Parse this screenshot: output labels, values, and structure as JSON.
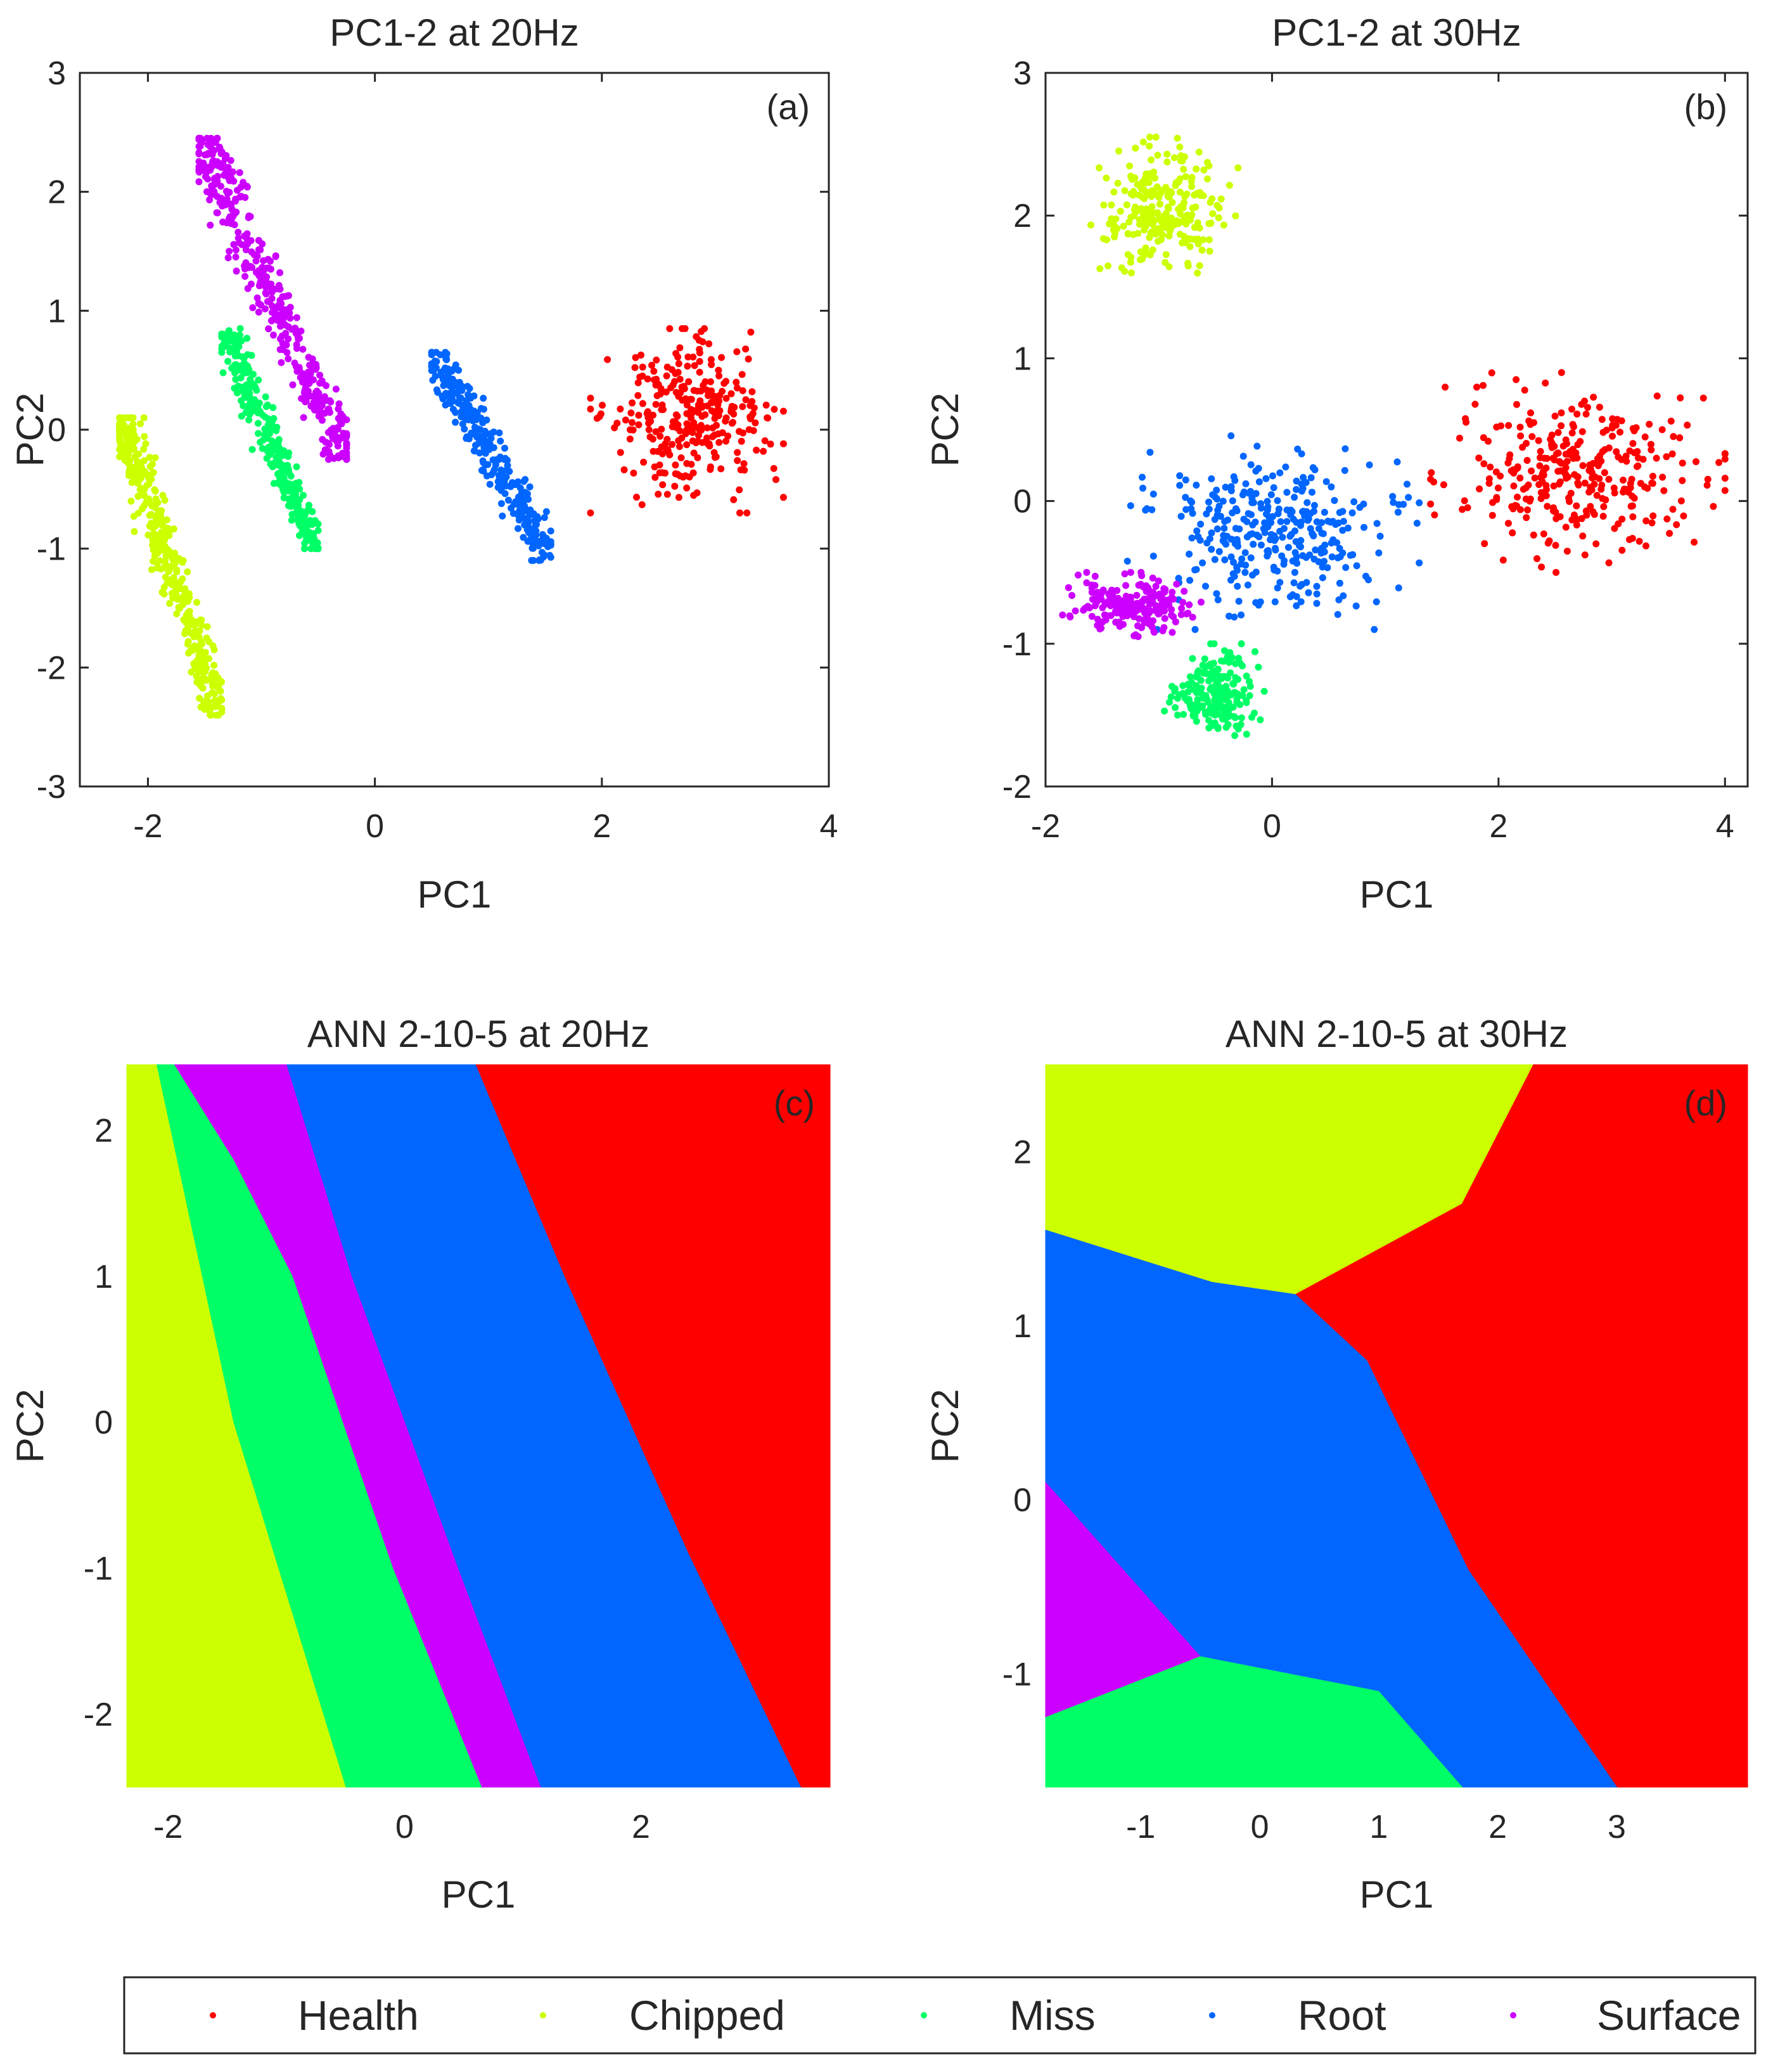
{
  "legend": {
    "entries": [
      {
        "label": "Health",
        "color": "#ff0000"
      },
      {
        "label": "Chipped",
        "color": "#ccff00"
      },
      {
        "label": "Miss",
        "color": "#00ff66"
      },
      {
        "label": "Root",
        "color": "#0066ff"
      },
      {
        "label": "Surface",
        "color": "#cc00ff"
      }
    ]
  },
  "chart_data": [
    {
      "type": "scatter",
      "panel": "(a)",
      "title": "PC1-2 at 20Hz",
      "xlabel": "PC1",
      "ylabel": "PC2",
      "xlim": [
        -2.6,
        4
      ],
      "ylim": [
        -3,
        3
      ],
      "xticks": [
        -2,
        0,
        2,
        4
      ],
      "yticks": [
        -3,
        -2,
        -1,
        0,
        1,
        2,
        3
      ],
      "tick_labels_x": [
        "-2",
        "0",
        "2",
        "4"
      ],
      "tick_labels_y": [
        "-3",
        "-2",
        "-1",
        "0",
        "1",
        "2",
        "3"
      ],
      "series": [
        {
          "name": "Health",
          "color": "#ff0000",
          "x_range": [
            1.9,
            3.6
          ],
          "y_range": [
            -0.7,
            0.85
          ],
          "n": 300,
          "shape": "blob"
        },
        {
          "name": "Chipped",
          "color": "#ccff00",
          "x_range": [
            -2.25,
            -1.35
          ],
          "y_range": [
            -2.4,
            0.1
          ],
          "n": 400,
          "shape": "line"
        },
        {
          "name": "Miss",
          "color": "#00ff66",
          "x_range": [
            -1.35,
            -0.5
          ],
          "y_range": [
            -1.0,
            0.85
          ],
          "n": 300,
          "shape": "line"
        },
        {
          "name": "Root",
          "color": "#0066ff",
          "x_range": [
            0.5,
            1.55
          ],
          "y_range": [
            -1.1,
            0.65
          ],
          "n": 300,
          "shape": "line"
        },
        {
          "name": "Surface",
          "color": "#cc00ff",
          "x_range": [
            -1.55,
            -0.25
          ],
          "y_range": [
            -0.25,
            2.45
          ],
          "n": 400,
          "shape": "line"
        }
      ]
    },
    {
      "type": "scatter",
      "panel": "(b)",
      "title": "PC1-2 at 30Hz",
      "xlabel": "PC1",
      "ylabel": "PC2",
      "xlim": [
        -2,
        4.2
      ],
      "ylim": [
        -2,
        3
      ],
      "xticks": [
        -2,
        0,
        2,
        4
      ],
      "yticks": [
        -2,
        -1,
        0,
        1,
        2,
        3
      ],
      "tick_labels_x": [
        "-2",
        "0",
        "2",
        "4"
      ],
      "tick_labels_y": [
        "-2",
        "-1",
        "0",
        "1",
        "2",
        "3"
      ],
      "series": [
        {
          "name": "Health",
          "color": "#ff0000",
          "x_range": [
            1.4,
            4.0
          ],
          "y_range": [
            -0.5,
            0.9
          ],
          "n": 320,
          "shape": "blob"
        },
        {
          "name": "Chipped",
          "color": "#ccff00",
          "x_range": [
            -1.6,
            -0.3
          ],
          "y_range": [
            1.55,
            2.55
          ],
          "n": 250,
          "shape": "blob"
        },
        {
          "name": "Miss",
          "color": "#00ff66",
          "x_range": [
            -0.95,
            -0.05
          ],
          "y_range": [
            -1.7,
            -1.0
          ],
          "n": 200,
          "shape": "blob"
        },
        {
          "name": "Root",
          "color": "#0066ff",
          "x_range": [
            -1.35,
            1.3
          ],
          "y_range": [
            -0.9,
            0.5
          ],
          "n": 330,
          "shape": "blob"
        },
        {
          "name": "Surface",
          "color": "#cc00ff",
          "x_range": [
            -1.85,
            -0.6
          ],
          "y_range": [
            -0.95,
            -0.5
          ],
          "n": 200,
          "shape": "blob"
        }
      ]
    },
    {
      "type": "heatmap",
      "panel": "(c)",
      "title": "ANN 2-10-5 at 20Hz",
      "xlabel": "PC1",
      "ylabel": "PC2",
      "xlim": [
        -2.35,
        3.6
      ],
      "ylim": [
        -2.5,
        2.45
      ],
      "xticks": [
        -2,
        0,
        2
      ],
      "yticks": [
        -2,
        -1,
        0,
        1,
        2
      ],
      "tick_labels_x": [
        "-2",
        "0",
        "2"
      ],
      "tick_labels_y": [
        "-2",
        "-1",
        "0",
        "1",
        "2"
      ],
      "regions": [
        {
          "name": "Health",
          "color": "#ff0000",
          "polygon": [
            [
              0.6,
              2.45
            ],
            [
              3.6,
              2.45
            ],
            [
              3.6,
              -2.5
            ],
            [
              3.35,
              -2.5
            ],
            [
              2.4,
              -0.9
            ],
            [
              1.35,
              1.0
            ]
          ]
        },
        {
          "name": "Root",
          "color": "#0066ff",
          "polygon": [
            [
              -1.0,
              2.45
            ],
            [
              0.6,
              2.45
            ],
            [
              1.35,
              1.0
            ],
            [
              2.4,
              -0.9
            ],
            [
              3.35,
              -2.5
            ],
            [
              1.15,
              -2.5
            ],
            [
              0.45,
              -1.0
            ],
            [
              -0.45,
              1.0
            ]
          ]
        },
        {
          "name": "Surface",
          "color": "#cc00ff",
          "polygon": [
            [
              -1.95,
              2.45
            ],
            [
              -1.0,
              2.45
            ],
            [
              -0.45,
              1.0
            ],
            [
              0.45,
              -1.0
            ],
            [
              1.15,
              -2.5
            ],
            [
              0.65,
              -2.5
            ],
            [
              -0.1,
              -1.0
            ],
            [
              -0.95,
              1.0
            ],
            [
              -1.45,
              1.8
            ]
          ]
        },
        {
          "name": "Miss",
          "color": "#00ff66",
          "polygon": [
            [
              -2.1,
              2.45
            ],
            [
              -1.95,
              2.45
            ],
            [
              -1.45,
              1.8
            ],
            [
              -0.95,
              1.0
            ],
            [
              -0.1,
              -1.0
            ],
            [
              0.65,
              -2.5
            ],
            [
              -0.5,
              -2.5
            ],
            [
              -1.45,
              0.0
            ]
          ]
        },
        {
          "name": "Chipped",
          "color": "#ccff00",
          "polygon": [
            [
              -2.35,
              2.45
            ],
            [
              -2.1,
              2.45
            ],
            [
              -1.45,
              0.0
            ],
            [
              -0.5,
              -2.5
            ],
            [
              -2.35,
              -2.5
            ]
          ]
        }
      ]
    },
    {
      "type": "heatmap",
      "panel": "(d)",
      "title": "ANN 2-10-5 at 30Hz",
      "xlabel": "PC1",
      "ylabel": "PC2",
      "xlim": [
        -1.8,
        4.1
      ],
      "ylim": [
        -1.65,
        2.5
      ],
      "xticks": [
        -1,
        0,
        1,
        2,
        3
      ],
      "yticks": [
        -1,
        0,
        1,
        2
      ],
      "tick_labels_x": [
        "-1",
        "0",
        "1",
        "2",
        "3"
      ],
      "tick_labels_y": [
        "-1",
        "0",
        "1",
        "2"
      ],
      "regions": [
        {
          "name": "Chipped",
          "color": "#ccff00",
          "polygon": [
            [
              -1.8,
              2.5
            ],
            [
              2.3,
              2.5
            ],
            [
              1.7,
              1.7
            ],
            [
              0.3,
              1.18
            ],
            [
              -0.4,
              1.25
            ],
            [
              -1.8,
              1.55
            ]
          ]
        },
        {
          "name": "Health",
          "color": "#ff0000",
          "polygon": [
            [
              2.3,
              2.5
            ],
            [
              4.1,
              2.5
            ],
            [
              4.1,
              -1.65
            ],
            [
              3.0,
              -1.65
            ],
            [
              1.75,
              -0.4
            ],
            [
              0.9,
              0.8
            ],
            [
              0.3,
              1.18
            ],
            [
              1.7,
              1.7
            ]
          ]
        },
        {
          "name": "Root",
          "color": "#0066ff",
          "polygon": [
            [
              -1.8,
              1.55
            ],
            [
              -0.4,
              1.25
            ],
            [
              0.3,
              1.18
            ],
            [
              0.9,
              0.8
            ],
            [
              1.75,
              -0.4
            ],
            [
              3.0,
              -1.65
            ],
            [
              1.7,
              -1.65
            ],
            [
              1.0,
              -1.1
            ],
            [
              -0.5,
              -0.9
            ],
            [
              -1.8,
              0.1
            ]
          ]
        },
        {
          "name": "Surface",
          "color": "#cc00ff",
          "polygon": [
            [
              -1.8,
              0.1
            ],
            [
              -0.5,
              -0.9
            ],
            [
              -1.8,
              -1.25
            ]
          ]
        },
        {
          "name": "Miss",
          "color": "#00ff66",
          "polygon": [
            [
              -1.8,
              -1.25
            ],
            [
              -0.5,
              -0.9
            ],
            [
              1.0,
              -1.1
            ],
            [
              1.7,
              -1.65
            ],
            [
              -1.8,
              -1.65
            ]
          ]
        }
      ]
    }
  ]
}
